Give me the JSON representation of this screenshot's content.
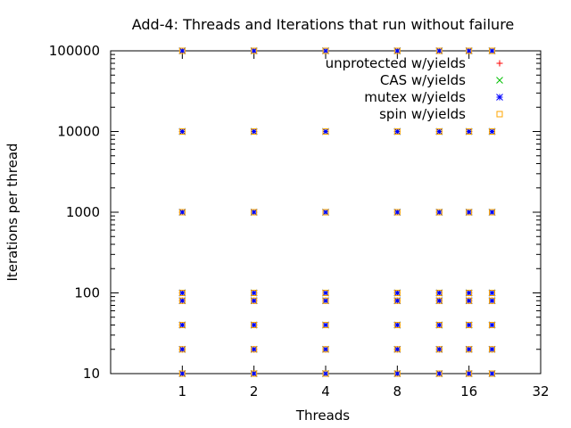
{
  "chart_data": {
    "type": "scatter",
    "title": "Add-4: Threads and Iterations that run without failure",
    "xlabel": "Threads",
    "ylabel": "Iterations per thread",
    "x_scale": "log2",
    "y_scale": "log10",
    "xlim": [
      0.5,
      32
    ],
    "ylim": [
      10,
      100000
    ],
    "x_ticks": [
      "1",
      "2",
      "4",
      "8",
      "16",
      "32"
    ],
    "y_ticks": [
      "10",
      "100",
      "1000",
      "10000",
      "100000"
    ],
    "grid": false,
    "legend_position": "top-right",
    "series": [
      {
        "name": "unprotected w/yields",
        "marker": "plus",
        "color": "#ff0000",
        "points": [
          [
            1,
            10
          ],
          [
            1,
            20
          ],
          [
            1,
            40
          ],
          [
            1,
            80
          ],
          [
            1,
            100
          ],
          [
            1,
            1000
          ],
          [
            1,
            10000
          ],
          [
            1,
            100000
          ],
          [
            2,
            10
          ],
          [
            2,
            20
          ],
          [
            2,
            40
          ],
          [
            2,
            80
          ],
          [
            2,
            100
          ],
          [
            2,
            1000
          ],
          [
            2,
            10000
          ],
          [
            2,
            100000
          ],
          [
            4,
            10
          ],
          [
            4,
            20
          ],
          [
            4,
            40
          ],
          [
            4,
            80
          ],
          [
            4,
            100
          ],
          [
            4,
            1000
          ],
          [
            4,
            10000
          ],
          [
            4,
            100000
          ],
          [
            8,
            10
          ],
          [
            8,
            20
          ],
          [
            8,
            40
          ],
          [
            8,
            80
          ],
          [
            8,
            100
          ],
          [
            8,
            1000
          ],
          [
            8,
            10000
          ],
          [
            8,
            100000
          ],
          [
            12,
            10
          ],
          [
            12,
            20
          ],
          [
            12,
            40
          ],
          [
            12,
            80
          ],
          [
            12,
            100
          ],
          [
            12,
            1000
          ],
          [
            12,
            10000
          ],
          [
            12,
            100000
          ],
          [
            16,
            10
          ],
          [
            16,
            20
          ],
          [
            16,
            40
          ],
          [
            16,
            80
          ],
          [
            16,
            100
          ],
          [
            16,
            1000
          ],
          [
            16,
            10000
          ],
          [
            16,
            100000
          ],
          [
            20,
            10
          ],
          [
            20,
            20
          ],
          [
            20,
            40
          ],
          [
            20,
            80
          ],
          [
            20,
            100
          ],
          [
            20,
            1000
          ],
          [
            20,
            10000
          ],
          [
            20,
            100000
          ]
        ]
      },
      {
        "name": "CAS w/yields",
        "marker": "cross",
        "color": "#00c000",
        "points": [
          [
            1,
            10
          ],
          [
            1,
            20
          ],
          [
            1,
            40
          ],
          [
            1,
            80
          ],
          [
            1,
            100
          ],
          [
            1,
            1000
          ],
          [
            1,
            10000
          ],
          [
            1,
            100000
          ],
          [
            2,
            10
          ],
          [
            2,
            20
          ],
          [
            2,
            40
          ],
          [
            2,
            80
          ],
          [
            2,
            100
          ],
          [
            2,
            1000
          ],
          [
            2,
            10000
          ],
          [
            2,
            100000
          ],
          [
            4,
            10
          ],
          [
            4,
            20
          ],
          [
            4,
            40
          ],
          [
            4,
            80
          ],
          [
            4,
            100
          ],
          [
            4,
            1000
          ],
          [
            4,
            10000
          ],
          [
            4,
            100000
          ],
          [
            8,
            10
          ],
          [
            8,
            20
          ],
          [
            8,
            40
          ],
          [
            8,
            80
          ],
          [
            8,
            100
          ],
          [
            8,
            1000
          ],
          [
            8,
            10000
          ],
          [
            8,
            100000
          ],
          [
            12,
            10
          ],
          [
            12,
            20
          ],
          [
            12,
            40
          ],
          [
            12,
            80
          ],
          [
            12,
            100
          ],
          [
            12,
            1000
          ],
          [
            12,
            10000
          ],
          [
            12,
            100000
          ],
          [
            16,
            10
          ],
          [
            16,
            20
          ],
          [
            16,
            40
          ],
          [
            16,
            80
          ],
          [
            16,
            100
          ],
          [
            16,
            1000
          ],
          [
            16,
            10000
          ],
          [
            16,
            100000
          ],
          [
            20,
            10
          ],
          [
            20,
            20
          ],
          [
            20,
            40
          ],
          [
            20,
            80
          ],
          [
            20,
            100
          ],
          [
            20,
            1000
          ],
          [
            20,
            10000
          ],
          [
            20,
            100000
          ]
        ]
      },
      {
        "name": "mutex w/yields",
        "marker": "star",
        "color": "#0000ff",
        "points": [
          [
            1,
            10
          ],
          [
            1,
            20
          ],
          [
            1,
            40
          ],
          [
            1,
            80
          ],
          [
            1,
            100
          ],
          [
            1,
            1000
          ],
          [
            1,
            10000
          ],
          [
            1,
            100000
          ],
          [
            2,
            10
          ],
          [
            2,
            20
          ],
          [
            2,
            40
          ],
          [
            2,
            80
          ],
          [
            2,
            100
          ],
          [
            2,
            1000
          ],
          [
            2,
            10000
          ],
          [
            2,
            100000
          ],
          [
            4,
            10
          ],
          [
            4,
            20
          ],
          [
            4,
            40
          ],
          [
            4,
            80
          ],
          [
            4,
            100
          ],
          [
            4,
            1000
          ],
          [
            4,
            10000
          ],
          [
            4,
            100000
          ],
          [
            8,
            10
          ],
          [
            8,
            20
          ],
          [
            8,
            40
          ],
          [
            8,
            80
          ],
          [
            8,
            100
          ],
          [
            8,
            1000
          ],
          [
            8,
            10000
          ],
          [
            8,
            100000
          ],
          [
            12,
            10
          ],
          [
            12,
            20
          ],
          [
            12,
            40
          ],
          [
            12,
            80
          ],
          [
            12,
            100
          ],
          [
            12,
            1000
          ],
          [
            12,
            10000
          ],
          [
            12,
            100000
          ],
          [
            16,
            10
          ],
          [
            16,
            20
          ],
          [
            16,
            40
          ],
          [
            16,
            80
          ],
          [
            16,
            100
          ],
          [
            16,
            1000
          ],
          [
            16,
            10000
          ],
          [
            16,
            100000
          ],
          [
            20,
            10
          ],
          [
            20,
            20
          ],
          [
            20,
            40
          ],
          [
            20,
            80
          ],
          [
            20,
            100
          ],
          [
            20,
            1000
          ],
          [
            20,
            10000
          ],
          [
            20,
            100000
          ]
        ]
      },
      {
        "name": "spin w/yields",
        "marker": "square",
        "color": "#ffa500",
        "points": [
          [
            1,
            10
          ],
          [
            1,
            20
          ],
          [
            1,
            40
          ],
          [
            1,
            80
          ],
          [
            1,
            100
          ],
          [
            1,
            1000
          ],
          [
            1,
            10000
          ],
          [
            1,
            100000
          ],
          [
            2,
            10
          ],
          [
            2,
            20
          ],
          [
            2,
            40
          ],
          [
            2,
            80
          ],
          [
            2,
            100
          ],
          [
            2,
            1000
          ],
          [
            2,
            10000
          ],
          [
            2,
            100000
          ],
          [
            4,
            10
          ],
          [
            4,
            20
          ],
          [
            4,
            40
          ],
          [
            4,
            80
          ],
          [
            4,
            100
          ],
          [
            4,
            1000
          ],
          [
            4,
            10000
          ],
          [
            4,
            100000
          ],
          [
            8,
            10
          ],
          [
            8,
            20
          ],
          [
            8,
            40
          ],
          [
            8,
            80
          ],
          [
            8,
            100
          ],
          [
            8,
            1000
          ],
          [
            8,
            10000
          ],
          [
            8,
            100000
          ],
          [
            12,
            10
          ],
          [
            12,
            20
          ],
          [
            12,
            40
          ],
          [
            12,
            80
          ],
          [
            12,
            100
          ],
          [
            12,
            1000
          ],
          [
            12,
            10000
          ],
          [
            12,
            100000
          ],
          [
            16,
            10
          ],
          [
            16,
            20
          ],
          [
            16,
            40
          ],
          [
            16,
            80
          ],
          [
            16,
            100
          ],
          [
            16,
            1000
          ],
          [
            16,
            10000
          ],
          [
            16,
            100000
          ],
          [
            20,
            10
          ],
          [
            20,
            20
          ],
          [
            20,
            40
          ],
          [
            20,
            80
          ],
          [
            20,
            100
          ],
          [
            20,
            1000
          ],
          [
            20,
            10000
          ],
          [
            20,
            100000
          ]
        ]
      }
    ]
  }
}
